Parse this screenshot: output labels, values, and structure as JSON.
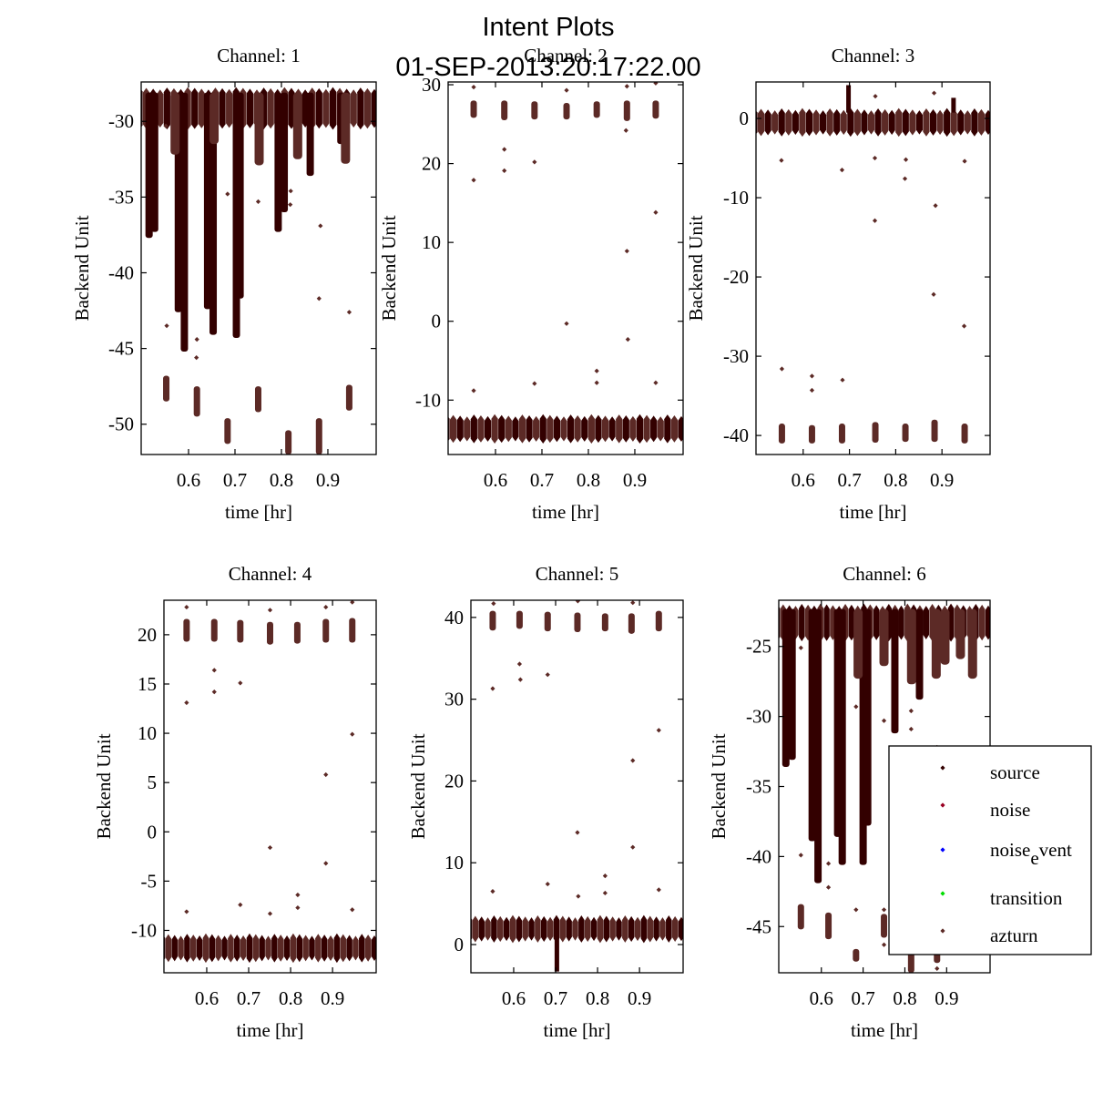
{
  "figure": {
    "title_line1": "Intent Plots",
    "title_line2": "01-SEP-2013:20:17:22.00"
  },
  "legend": {
    "placement": "lower-right of Channel 6 panel",
    "entries": [
      {
        "label": "source",
        "color": "#330000"
      },
      {
        "label": "noise",
        "color": "#990022"
      },
      {
        "label": "noise_event",
        "label_main": "noise",
        "label_sub": "e",
        "label_rest": "vent",
        "color": "#0000ff"
      },
      {
        "label": "transition",
        "color": "#00dd00"
      },
      {
        "label": "azturn",
        "color": "#5c2a26"
      }
    ]
  },
  "colors": {
    "source": "#330000",
    "azturn": "#5c2a26"
  },
  "chart_data": [
    {
      "type": "scatter",
      "title": "Channel: 1",
      "xlabel": "time [hr]",
      "ylabel": "Backend Unit",
      "xlim": [
        0.498,
        1.004
      ],
      "ylim": [
        -52.0,
        -27.4
      ],
      "xticks": [
        0.6,
        0.7,
        0.8,
        0.9
      ],
      "xtick_labels": [
        "0.6",
        "0.7",
        "0.8",
        "0.9"
      ],
      "yticks": [
        -30,
        -35,
        -40,
        -45,
        -50
      ],
      "ytick_labels": [
        "-30",
        "-35",
        "-40",
        "-45",
        "-50"
      ],
      "grid": false,
      "baseline": {
        "min": -30.5,
        "max": -27.8
      },
      "source_streaks": [
        {
          "x": 0.515,
          "min": -37.7
        },
        {
          "x": 0.527,
          "min": -37.3
        },
        {
          "x": 0.578,
          "min": -42.6
        },
        {
          "x": 0.591,
          "min": -45.2
        },
        {
          "x": 0.641,
          "min": -42.4
        },
        {
          "x": 0.653,
          "min": -44.1
        },
        {
          "x": 0.703,
          "min": -44.3
        },
        {
          "x": 0.711,
          "min": -41.7
        },
        {
          "x": 0.793,
          "min": -37.3
        },
        {
          "x": 0.806,
          "min": -36.0
        },
        {
          "x": 0.862,
          "min": -33.6
        },
        {
          "x": 0.928,
          "min": -31.5
        }
      ],
      "azturn_streaks": [
        {
          "x": 0.571,
          "min": -32.2
        },
        {
          "x": 0.655,
          "min": -31.5
        },
        {
          "x": 0.752,
          "min": -32.9
        },
        {
          "x": 0.835,
          "min": -32.5
        },
        {
          "x": 0.938,
          "min": -32.8
        }
      ],
      "azturn_clusters": [
        {
          "x": 0.552,
          "min": -48.5,
          "max": -46.8
        },
        {
          "x": 0.618,
          "min": -49.5,
          "max": -47.5
        },
        {
          "x": 0.684,
          "min": -51.3,
          "max": -49.6
        },
        {
          "x": 0.75,
          "min": -49.2,
          "max": -47.5
        },
        {
          "x": 0.815,
          "min": -52.0,
          "max": -50.4
        },
        {
          "x": 0.881,
          "min": -52.0,
          "max": -49.6
        },
        {
          "x": 0.946,
          "min": -49.1,
          "max": -47.4
        }
      ],
      "outliers": [
        {
          "x": 0.553,
          "y": -43.5
        },
        {
          "x": 0.618,
          "y": -44.4
        },
        {
          "x": 0.617,
          "y": -45.6
        },
        {
          "x": 0.684,
          "y": -34.8
        },
        {
          "x": 0.75,
          "y": -35.3
        },
        {
          "x": 0.819,
          "y": -35.5
        },
        {
          "x": 0.82,
          "y": -34.6
        },
        {
          "x": 0.884,
          "y": -36.9
        },
        {
          "x": 0.881,
          "y": -41.7
        },
        {
          "x": 0.946,
          "y": -42.6
        },
        {
          "x": 0.551,
          "y": -30.3
        }
      ]
    },
    {
      "type": "scatter",
      "title": "Channel: 2",
      "xlabel": "time [hr]",
      "ylabel": "Backend Unit",
      "xlim": [
        0.498,
        1.004
      ],
      "ylim": [
        -16.9,
        30.35
      ],
      "xticks": [
        0.6,
        0.7,
        0.8,
        0.9
      ],
      "xtick_labels": [
        "0.6",
        "0.7",
        "0.8",
        "0.9"
      ],
      "yticks": [
        30,
        20,
        10,
        0,
        -10
      ],
      "ytick_labels": [
        "30",
        "20",
        "10",
        "0",
        "-10"
      ],
      "grid": false,
      "baseline": {
        "min": -15.4,
        "max": -11.9
      },
      "source_streaks": [],
      "azturn_streaks": [],
      "azturn_clusters": [
        {
          "x": 0.553,
          "min": 25.8,
          "max": 28.0
        },
        {
          "x": 0.619,
          "min": 25.5,
          "max": 28.0
        },
        {
          "x": 0.684,
          "min": 25.6,
          "max": 27.9
        },
        {
          "x": 0.753,
          "min": 25.6,
          "max": 27.7
        },
        {
          "x": 0.818,
          "min": 25.8,
          "max": 27.9
        },
        {
          "x": 0.883,
          "min": 25.4,
          "max": 28.0
        },
        {
          "x": 0.945,
          "min": 25.7,
          "max": 28.0
        }
      ],
      "outliers": [
        {
          "x": 0.553,
          "y": 29.7
        },
        {
          "x": 0.553,
          "y": 17.9
        },
        {
          "x": 0.619,
          "y": 21.8
        },
        {
          "x": 0.619,
          "y": 19.1
        },
        {
          "x": 0.684,
          "y": 20.2
        },
        {
          "x": 0.753,
          "y": 29.3
        },
        {
          "x": 0.753,
          "y": -0.3
        },
        {
          "x": 0.883,
          "y": 29.8
        },
        {
          "x": 0.881,
          "y": 24.2
        },
        {
          "x": 0.883,
          "y": 8.9
        },
        {
          "x": 0.885,
          "y": -2.3
        },
        {
          "x": 0.945,
          "y": 30.2
        },
        {
          "x": 0.945,
          "y": 13.8
        },
        {
          "x": 0.553,
          "y": -8.8
        },
        {
          "x": 0.684,
          "y": -7.9
        },
        {
          "x": 0.818,
          "y": -6.3
        },
        {
          "x": 0.818,
          "y": -7.8
        },
        {
          "x": 0.945,
          "y": -7.8
        }
      ]
    },
    {
      "type": "scatter",
      "title": "Channel: 3",
      "xlabel": "time [hr]",
      "ylabel": "Backend Unit",
      "xlim": [
        0.498,
        1.004
      ],
      "ylim": [
        -42.4,
        4.6
      ],
      "xticks": [
        0.6,
        0.7,
        0.8,
        0.9
      ],
      "xtick_labels": [
        "0.6",
        "0.7",
        "0.8",
        "0.9"
      ],
      "yticks": [
        0,
        -10,
        -20,
        -30,
        -40
      ],
      "ytick_labels": [
        "0",
        "-10",
        "-20",
        "-30",
        "-40"
      ],
      "grid": false,
      "baseline": {
        "min": -2.2,
        "max": 1.2
      },
      "source_streaks": [],
      "azturn_streaks": [],
      "spikes": [
        {
          "x": 0.698,
          "max": 4.2
        },
        {
          "x": 0.925,
          "max": 2.6
        }
      ],
      "azturn_clusters": [
        {
          "x": 0.554,
          "min": -41.0,
          "max": -38.5
        },
        {
          "x": 0.619,
          "min": -41.0,
          "max": -38.7
        },
        {
          "x": 0.684,
          "min": -41.0,
          "max": -38.5
        },
        {
          "x": 0.756,
          "min": -40.9,
          "max": -38.3
        },
        {
          "x": 0.821,
          "min": -40.8,
          "max": -38.5
        },
        {
          "x": 0.884,
          "min": -40.8,
          "max": -38.0
        },
        {
          "x": 0.949,
          "min": -41.0,
          "max": -38.5
        }
      ],
      "outliers": [
        {
          "x": 0.553,
          "y": -5.3
        },
        {
          "x": 0.684,
          "y": -6.5
        },
        {
          "x": 0.755,
          "y": -5.0
        },
        {
          "x": 0.755,
          "y": -12.9
        },
        {
          "x": 0.822,
          "y": -5.2
        },
        {
          "x": 0.82,
          "y": -7.6
        },
        {
          "x": 0.886,
          "y": -11.0
        },
        {
          "x": 0.882,
          "y": -22.2
        },
        {
          "x": 0.949,
          "y": -5.4
        },
        {
          "x": 0.948,
          "y": -26.2
        },
        {
          "x": 0.554,
          "y": -31.6
        },
        {
          "x": 0.619,
          "y": -32.5
        },
        {
          "x": 0.619,
          "y": -34.3
        },
        {
          "x": 0.685,
          "y": -33.0
        },
        {
          "x": 0.756,
          "y": 2.8
        },
        {
          "x": 0.883,
          "y": 3.2
        }
      ]
    },
    {
      "type": "scatter",
      "title": "Channel: 4",
      "xlabel": "time [hr]",
      "ylabel": "Backend Unit",
      "xlim": [
        0.498,
        1.004
      ],
      "ylim": [
        -14.3,
        23.5
      ],
      "xticks": [
        0.6,
        0.7,
        0.8,
        0.9
      ],
      "xtick_labels": [
        "0.6",
        "0.7",
        "0.8",
        "0.9"
      ],
      "yticks": [
        20,
        15,
        10,
        5,
        0,
        -5,
        -10
      ],
      "ytick_labels": [
        "20",
        "15",
        "10",
        "5",
        "0",
        "-5",
        "-10"
      ],
      "grid": false,
      "baseline": {
        "min": -13.2,
        "max": -10.4
      },
      "source_streaks": [],
      "azturn_streaks": [],
      "azturn_clusters": [
        {
          "x": 0.552,
          "min": 19.3,
          "max": 21.6
        },
        {
          "x": 0.618,
          "min": 19.3,
          "max": 21.6
        },
        {
          "x": 0.68,
          "min": 19.2,
          "max": 21.5
        },
        {
          "x": 0.751,
          "min": 19.0,
          "max": 21.3
        },
        {
          "x": 0.816,
          "min": 19.1,
          "max": 21.3
        },
        {
          "x": 0.884,
          "min": 19.2,
          "max": 21.6
        },
        {
          "x": 0.947,
          "min": 19.2,
          "max": 21.7
        }
      ],
      "outliers": [
        {
          "x": 0.552,
          "y": 22.8
        },
        {
          "x": 0.552,
          "y": 13.1
        },
        {
          "x": 0.618,
          "y": 16.4
        },
        {
          "x": 0.618,
          "y": 14.2
        },
        {
          "x": 0.68,
          "y": 15.1
        },
        {
          "x": 0.751,
          "y": 22.5
        },
        {
          "x": 0.751,
          "y": -1.6
        },
        {
          "x": 0.884,
          "y": 22.8
        },
        {
          "x": 0.884,
          "y": 5.8
        },
        {
          "x": 0.884,
          "y": -3.2
        },
        {
          "x": 0.947,
          "y": 23.3
        },
        {
          "x": 0.947,
          "y": 9.9
        },
        {
          "x": 0.552,
          "y": -8.1
        },
        {
          "x": 0.68,
          "y": -7.4
        },
        {
          "x": 0.817,
          "y": -6.4
        },
        {
          "x": 0.817,
          "y": -7.7
        },
        {
          "x": 0.947,
          "y": -7.9
        },
        {
          "x": 0.751,
          "y": -8.3
        }
      ]
    },
    {
      "type": "scatter",
      "title": "Channel: 5",
      "xlabel": "time [hr]",
      "ylabel": "Backend Unit",
      "xlim": [
        0.498,
        1.004
      ],
      "ylim": [
        -3.45,
        42.1
      ],
      "xticks": [
        0.6,
        0.7,
        0.8,
        0.9
      ],
      "xtick_labels": [
        "0.6",
        "0.7",
        "0.8",
        "0.9"
      ],
      "yticks": [
        40,
        30,
        20,
        10,
        0
      ],
      "ytick_labels": [
        "40",
        "30",
        "20",
        "10",
        "0"
      ],
      "grid": false,
      "baseline": {
        "min": 0.3,
        "max": 3.5
      },
      "source_streaks": [],
      "azturn_streaks": [],
      "dips": [
        {
          "x": 0.703,
          "min": -3.3
        }
      ],
      "azturn_clusters": [
        {
          "x": 0.55,
          "min": 38.4,
          "max": 40.8
        },
        {
          "x": 0.614,
          "min": 38.6,
          "max": 40.8
        },
        {
          "x": 0.681,
          "min": 38.3,
          "max": 40.7
        },
        {
          "x": 0.752,
          "min": 38.2,
          "max": 40.6
        },
        {
          "x": 0.818,
          "min": 38.3,
          "max": 40.5
        },
        {
          "x": 0.881,
          "min": 38.0,
          "max": 40.5
        },
        {
          "x": 0.946,
          "min": 38.3,
          "max": 40.8
        }
      ],
      "outliers": [
        {
          "x": 0.55,
          "y": 31.3
        },
        {
          "x": 0.614,
          "y": 34.3
        },
        {
          "x": 0.616,
          "y": 32.4
        },
        {
          "x": 0.681,
          "y": 33.0
        },
        {
          "x": 0.752,
          "y": 13.7
        },
        {
          "x": 0.884,
          "y": 22.5
        },
        {
          "x": 0.884,
          "y": 11.9
        },
        {
          "x": 0.946,
          "y": 26.2
        },
        {
          "x": 0.55,
          "y": 6.5
        },
        {
          "x": 0.681,
          "y": 7.4
        },
        {
          "x": 0.818,
          "y": 8.4
        },
        {
          "x": 0.818,
          "y": 6.3
        },
        {
          "x": 0.754,
          "y": 5.9
        },
        {
          "x": 0.946,
          "y": 6.7
        },
        {
          "x": 0.552,
          "y": 41.7
        },
        {
          "x": 0.753,
          "y": 42.0
        },
        {
          "x": 0.884,
          "y": 41.8
        }
      ]
    },
    {
      "type": "scatter",
      "title": "Channel: 6",
      "xlabel": "time [hr]",
      "ylabel": "Backend Unit",
      "xlim": [
        0.498,
        1.004
      ],
      "ylim": [
        -48.3,
        -21.7
      ],
      "xticks": [
        0.6,
        0.7,
        0.8,
        0.9
      ],
      "xtick_labels": [
        "0.6",
        "0.7",
        "0.8",
        "0.9"
      ],
      "yticks": [
        -25,
        -30,
        -35,
        -40,
        -45
      ],
      "ytick_labels": [
        "-25",
        "-30",
        "-35",
        "-40",
        "-45"
      ],
      "grid": false,
      "baseline": {
        "min": -24.6,
        "max": -22.0
      },
      "source_streaks": [
        {
          "x": 0.515,
          "min": -33.6
        },
        {
          "x": 0.53,
          "min": -33.1
        },
        {
          "x": 0.578,
          "min": -38.9
        },
        {
          "x": 0.592,
          "min": -41.9
        },
        {
          "x": 0.639,
          "min": -38.6
        },
        {
          "x": 0.65,
          "min": -40.6
        },
        {
          "x": 0.7,
          "min": -40.6
        },
        {
          "x": 0.711,
          "min": -37.8
        },
        {
          "x": 0.776,
          "min": -31.2
        },
        {
          "x": 0.835,
          "min": -28.8
        }
      ],
      "azturn_streaks": [
        {
          "x": 0.688,
          "min": -27.3
        },
        {
          "x": 0.75,
          "min": -26.4
        },
        {
          "x": 0.816,
          "min": -27.7
        },
        {
          "x": 0.875,
          "min": -27.3
        },
        {
          "x": 0.896,
          "min": -26.3
        },
        {
          "x": 0.933,
          "min": -25.9
        },
        {
          "x": 0.962,
          "min": -27.3
        }
      ],
      "azturn_clusters": [
        {
          "x": 0.551,
          "min": -45.2,
          "max": -43.4
        },
        {
          "x": 0.617,
          "min": -45.9,
          "max": -44.0
        },
        {
          "x": 0.683,
          "min": -47.5,
          "max": -46.6
        },
        {
          "x": 0.75,
          "min": -45.8,
          "max": -44.1
        },
        {
          "x": 0.815,
          "min": -48.3,
          "max": -46.5
        },
        {
          "x": 0.877,
          "min": -47.6,
          "max": -46.2
        }
      ],
      "outliers": [
        {
          "x": 0.551,
          "y": -25.1
        },
        {
          "x": 0.551,
          "y": -39.9
        },
        {
          "x": 0.617,
          "y": -40.5
        },
        {
          "x": 0.617,
          "y": -42.2
        },
        {
          "x": 0.683,
          "y": -29.3
        },
        {
          "x": 0.683,
          "y": -43.8
        },
        {
          "x": 0.75,
          "y": -30.3
        },
        {
          "x": 0.75,
          "y": -43.8
        },
        {
          "x": 0.75,
          "y": -46.3
        },
        {
          "x": 0.815,
          "y": -29.6
        },
        {
          "x": 0.815,
          "y": -30.9
        },
        {
          "x": 0.877,
          "y": -32.2
        },
        {
          "x": 0.877,
          "y": -48.0
        }
      ]
    }
  ]
}
